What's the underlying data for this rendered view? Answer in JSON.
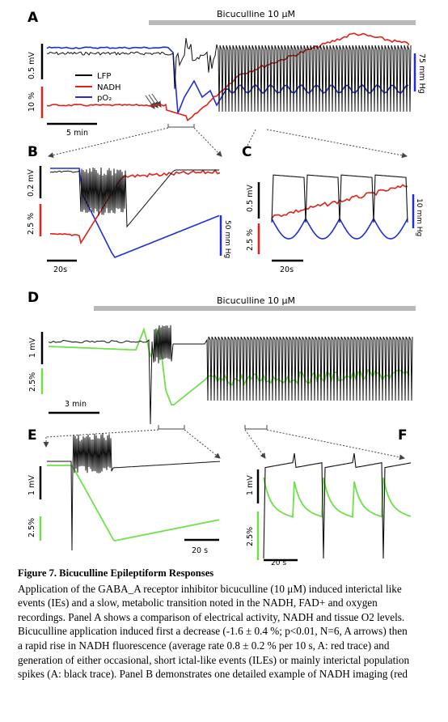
{
  "figure": {
    "panels": {
      "A": {
        "letter": "A",
        "drug_label": "Bicuculline 10 μM",
        "scale_lfp": "0.5 mV",
        "scale_nadh": "10 %",
        "scale_time": "5 min",
        "scale_po2": "75 mm Hg",
        "legend": [
          {
            "label": "LFP",
            "color": "#000000"
          },
          {
            "label": "NADH",
            "color": "#e0221b"
          },
          {
            "label": "pO₂",
            "color": "#1f2fd6"
          }
        ]
      },
      "B": {
        "letter": "B",
        "scale_lfp": "0.2 mV",
        "scale_nadh": "2.5 %",
        "scale_time": "20s",
        "scale_po2": "50 mm Hg"
      },
      "C": {
        "letter": "C",
        "scale_lfp": "0.5 mV",
        "scale_nadh": "2.5 %",
        "scale_time": "20s",
        "scale_po2": "10 mm Hg"
      },
      "D": {
        "letter": "D",
        "drug_label": "Bicuculline 10 μM",
        "scale_lfp": "1 mV",
        "scale_nadh": "2.5%",
        "scale_time": "3 min"
      },
      "E": {
        "letter": "E",
        "scale_lfp": "1 mV",
        "scale_nadh": "2.5%",
        "scale_time": "20 s"
      },
      "F": {
        "letter": "F",
        "scale_lfp": "1 mV",
        "scale_nadh": "2.5%",
        "scale_time": "20 s"
      }
    },
    "colors": {
      "lfp": "#111111",
      "nadh": "#e0221b",
      "po2": "#1f2fd6",
      "nadh_green": "#6fe04a",
      "drug_bar": "#b8b8b8"
    }
  },
  "caption": {
    "title": "Figure 7. Bicuculline Epileptiform Responses",
    "lines": [
      "Application of the GABA_A receptor inhibitor bicuculline (10 μM) induced interictal like",
      "events (IEs) and a slow, metabolic transition noted in the NADH, FAD+ and oxygen",
      "recordings. Panel A shows a comparison of electrical activity, NADH and tissue O2 levels.",
      "Bicuculline application induced first a decrease (-1.6 ± 0.4 %; p<0.01, N=6, A arrows) then",
      "a rapid rise in NADH fluorescence (average rate 0.8 ± 0.2 % per 10 s, A: red trace) and",
      "generation of either occasional, short ictal-like events (ILEs) or mainly interictal population",
      "spikes (A: black trace). Panel B demonstrates one detailed example of NADH imaging (red"
    ]
  }
}
